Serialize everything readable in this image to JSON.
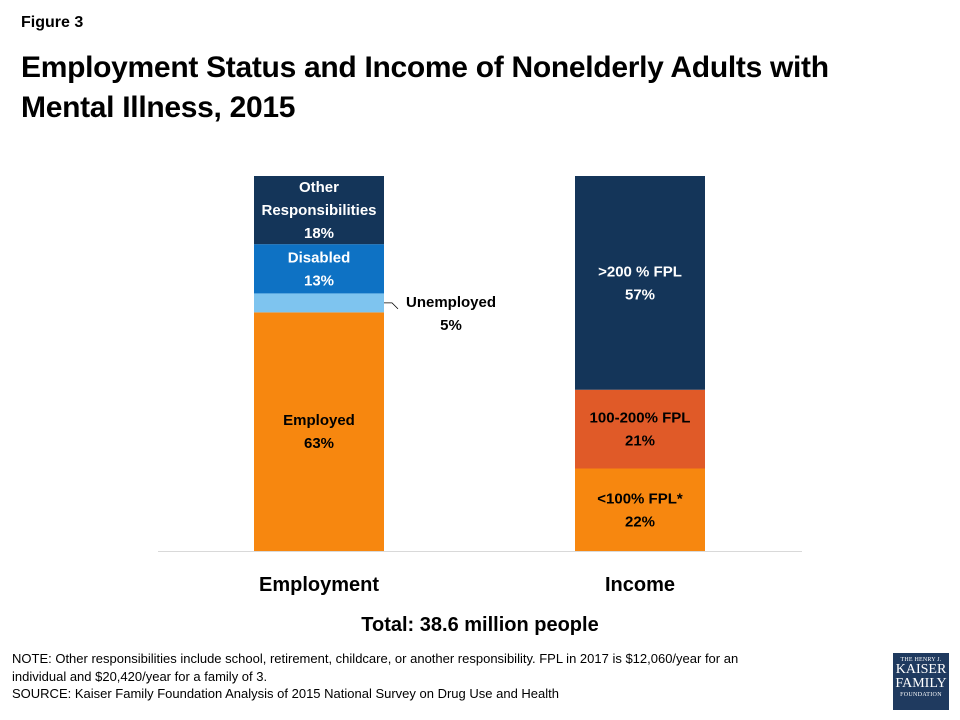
{
  "figure_label": "Figure 3",
  "title": "Employment Status and Income of Nonelderly Adults with Mental Illness, 2015",
  "total_label": "Total: 38.6 million people",
  "note_lines": [
    "NOTE: Other responsibilities include school, retirement, childcare, or another responsibility. FPL in 2017 is $12,060/year for an",
    "individual and $20,420/year for a family of 3.",
    "SOURCE: Kaiser Family Foundation Analysis of 2015 National Survey on Drug Use and Health"
  ],
  "logo": {
    "line1": "THE HENRY J.",
    "line2": "KAISER",
    "line3": "FAMILY",
    "line4": "FOUNDATION"
  },
  "chart_data": {
    "type": "bar",
    "stacked": true,
    "categories": [
      "Employment",
      "Income"
    ],
    "ylim": [
      0,
      100
    ],
    "grid": false,
    "bars": [
      {
        "category": "Employment",
        "segments": [
          {
            "label": "Employed",
            "value": 63,
            "color": "#f7870f",
            "text_color": "#000000"
          },
          {
            "label": "Unemployed",
            "value": 5,
            "color": "#7ec4ef",
            "text_color": "#000000",
            "callout": true
          },
          {
            "label": "Disabled",
            "value": 13,
            "color": "#0e72c4",
            "text_color": "#ffffff"
          },
          {
            "label": "Other Responsibilities",
            "value": 18,
            "color": "#143559",
            "text_color": "#ffffff"
          }
        ]
      },
      {
        "category": "Income",
        "segments": [
          {
            "label": "<100% FPL*",
            "value": 22,
            "color": "#f7870f",
            "text_color": "#000000"
          },
          {
            "label": "100-200% FPL",
            "value": 21,
            "color": "#e05a28",
            "text_color": "#000000"
          },
          {
            "label": ">200 % FPL",
            "value": 57,
            "color": "#143559",
            "text_color": "#ffffff"
          }
        ]
      }
    ]
  }
}
